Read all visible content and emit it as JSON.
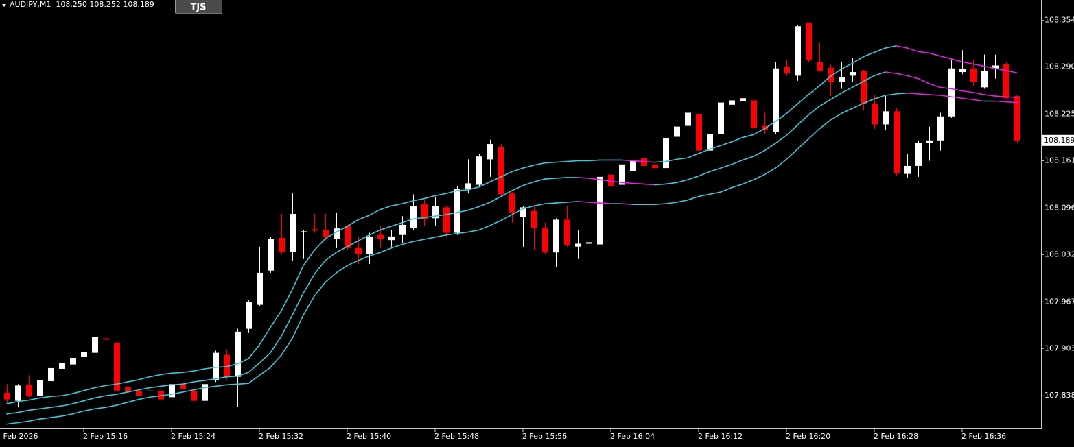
{
  "header": {
    "info": "AUDJPY,M1  108.250 108.252 108.189",
    "button": "TJS"
  },
  "chart_data": {
    "type": "candlestick",
    "date_label": "2 Feb 2026",
    "categories": [
      null,
      null,
      null,
      null,
      null,
      null,
      null,
      "2 Feb 15:16",
      null,
      null,
      null,
      null,
      null,
      null,
      null,
      "2 Feb 15:24",
      null,
      null,
      null,
      null,
      null,
      null,
      null,
      "2 Feb 15:32",
      null,
      null,
      null,
      null,
      null,
      null,
      null,
      "2 Feb 15:40",
      null,
      null,
      null,
      null,
      null,
      null,
      null,
      "2 Feb 15:48",
      null,
      null,
      null,
      null,
      null,
      null,
      null,
      "2 Feb 15:56",
      null,
      null,
      null,
      null,
      null,
      null,
      null,
      "2 Feb 16:04",
      null,
      null,
      null,
      null,
      null,
      null,
      null,
      "2 Feb 16:12",
      null,
      null,
      null,
      null,
      null,
      null,
      null,
      "2 Feb 16:20",
      null,
      null,
      null,
      null,
      null,
      null,
      null,
      "2 Feb 16:28",
      null,
      null,
      null,
      null,
      null,
      null,
      null,
      "2 Feb 16:36",
      null,
      null,
      null,
      null,
      null
    ],
    "open": [
      107.842,
      107.831,
      107.853,
      107.838,
      107.858,
      107.875,
      107.881,
      107.891,
      107.897,
      107.917,
      107.911,
      107.85,
      107.845,
      107.844,
      107.845,
      107.836,
      107.854,
      107.845,
      107.831,
      107.859,
      107.894,
      107.864,
      107.93,
      107.963,
      108.01,
      108.055,
      108.036,
      108.063,
      108.067,
      108.066,
      108.054,
      108.071,
      108.041,
      108.033,
      108.059,
      108.052,
      108.059,
      108.069,
      108.101,
      108.082,
      108.097,
      108.062,
      108.122,
      108.128,
      108.163,
      108.18,
      108.116,
      108.084,
      108.092,
      108.068,
      108.035,
      108.08,
      108.043,
      108.047,
      108.046,
      108.142,
      108.128,
      108.147,
      108.165,
      108.156,
      108.151,
      108.194,
      108.209,
      108.225,
      108.175,
      108.198,
      108.238,
      108.243,
      108.244,
      108.209,
      108.201,
      108.29,
      108.278,
      108.35,
      108.297,
      108.289,
      108.269,
      108.278,
      108.284,
      108.239,
      108.211,
      108.229,
      108.143,
      108.154,
      108.186,
      108.189,
      108.222,
      108.283,
      108.288,
      108.262,
      108.288,
      108.294,
      108.25
    ],
    "high": [
      107.854,
      107.854,
      107.866,
      107.864,
      107.894,
      107.892,
      107.902,
      107.911,
      107.92,
      107.926,
      107.911,
      107.854,
      107.85,
      107.854,
      107.85,
      107.866,
      107.859,
      107.85,
      107.859,
      107.9,
      107.902,
      107.93,
      107.969,
      108.043,
      108.056,
      108.088,
      108.116,
      108.066,
      108.088,
      108.088,
      108.09,
      108.073,
      108.057,
      108.062,
      108.071,
      108.066,
      108.085,
      108.115,
      108.107,
      108.111,
      108.099,
      108.126,
      108.163,
      108.17,
      108.19,
      108.184,
      108.118,
      108.099,
      108.099,
      108.076,
      108.082,
      108.099,
      108.066,
      108.09,
      108.142,
      108.177,
      108.189,
      108.189,
      108.189,
      108.165,
      108.212,
      108.227,
      108.26,
      108.227,
      108.212,
      108.26,
      108.261,
      108.26,
      108.271,
      108.227,
      108.297,
      108.299,
      108.347,
      108.351,
      108.324,
      108.293,
      108.297,
      108.302,
      108.286,
      108.252,
      108.25,
      108.233,
      108.17,
      108.189,
      108.208,
      108.227,
      108.299,
      108.313,
      108.299,
      108.307,
      108.307,
      108.297,
      108.252
    ],
    "low": [
      107.826,
      107.822,
      107.836,
      107.834,
      107.856,
      107.869,
      107.878,
      107.89,
      107.894,
      107.911,
      107.843,
      107.836,
      107.836,
      107.823,
      107.813,
      107.834,
      107.84,
      107.822,
      107.826,
      107.857,
      107.859,
      107.823,
      107.925,
      107.961,
      108.007,
      108.033,
      108.024,
      108.026,
      108.062,
      108.052,
      108.041,
      108.038,
      108.019,
      108.019,
      108.041,
      108.043,
      108.048,
      108.066,
      108.071,
      108.071,
      108.057,
      108.059,
      108.116,
      108.126,
      108.139,
      108.114,
      108.076,
      108.043,
      108.038,
      108.033,
      108.015,
      108.043,
      108.026,
      108.032,
      108.045,
      108.124,
      108.126,
      108.13,
      108.151,
      108.132,
      108.148,
      108.191,
      108.194,
      108.173,
      108.167,
      108.195,
      108.231,
      108.203,
      108.203,
      108.198,
      108.198,
      108.278,
      108.271,
      108.297,
      108.284,
      108.25,
      108.26,
      108.269,
      108.231,
      108.205,
      108.203,
      108.141,
      108.138,
      108.139,
      108.161,
      108.175,
      108.22,
      108.28,
      108.264,
      108.26,
      108.274,
      108.245,
      108.186
    ],
    "close": [
      107.833,
      107.852,
      107.838,
      107.859,
      107.876,
      107.883,
      107.89,
      107.898,
      107.919,
      107.915,
      107.845,
      107.843,
      107.838,
      107.845,
      107.833,
      107.854,
      107.847,
      107.831,
      107.854,
      107.897,
      107.864,
      107.926,
      107.967,
      108.007,
      108.054,
      108.035,
      108.088,
      108.064,
      108.065,
      108.057,
      108.068,
      108.041,
      108.033,
      108.057,
      108.054,
      108.057,
      108.073,
      108.099,
      108.081,
      108.099,
      108.062,
      108.122,
      108.13,
      108.167,
      108.184,
      108.115,
      108.09,
      108.097,
      108.068,
      108.035,
      108.08,
      108.045,
      108.047,
      108.049,
      108.139,
      108.126,
      108.156,
      108.162,
      108.154,
      108.151,
      108.192,
      108.208,
      108.227,
      108.175,
      108.198,
      108.241,
      108.244,
      108.247,
      108.206,
      108.203,
      108.288,
      108.281,
      108.346,
      108.299,
      108.285,
      108.269,
      108.276,
      108.283,
      108.239,
      108.211,
      108.229,
      108.144,
      108.154,
      108.186,
      108.189,
      108.222,
      108.288,
      108.287,
      108.269,
      108.285,
      108.292,
      108.247,
      108.189
    ],
    "up_color": "#ffffff",
    "down_color": "#ff0000",
    "lines": [
      {
        "color": "#3cc8d8",
        "falling_color": "#e020e0",
        "values": [
          107.827,
          107.83,
          107.832,
          107.835,
          107.837,
          107.838,
          107.841,
          107.845,
          107.849,
          107.852,
          107.854,
          107.857,
          107.86,
          107.864,
          107.867,
          107.869,
          107.87,
          107.872,
          107.875,
          107.877,
          107.878,
          107.882,
          107.889,
          107.908,
          107.932,
          107.955,
          107.984,
          108.017,
          108.038,
          108.054,
          108.063,
          108.071,
          108.08,
          108.086,
          108.094,
          108.099,
          108.102,
          108.106,
          108.109,
          108.113,
          108.116,
          108.12,
          108.121,
          108.125,
          108.132,
          108.139,
          108.146,
          108.151,
          108.155,
          108.158,
          108.159,
          108.16,
          108.161,
          108.161,
          108.162,
          108.162,
          108.162,
          108.161,
          108.16,
          108.159,
          108.16,
          108.163,
          108.165,
          108.171,
          108.177,
          108.182,
          108.187,
          108.193,
          108.197,
          108.205,
          108.215,
          108.226,
          108.239,
          108.252,
          108.264,
          108.277,
          108.287,
          108.295,
          108.304,
          108.31,
          108.316,
          108.319,
          108.316,
          108.311,
          108.309,
          108.305,
          108.301,
          108.297,
          108.294,
          108.291,
          108.288,
          108.285,
          108.282
        ]
      },
      {
        "color": "#3cc8d8",
        "falling_color": "#e020e0",
        "values": [
          107.813,
          107.815,
          107.818,
          107.82,
          107.822,
          107.824,
          107.827,
          107.831,
          107.835,
          107.838,
          107.84,
          107.843,
          107.846,
          107.849,
          107.851,
          107.853,
          107.854,
          107.857,
          107.859,
          107.861,
          107.864,
          107.865,
          107.87,
          107.883,
          107.897,
          107.92,
          107.949,
          107.979,
          108.005,
          108.024,
          108.035,
          108.043,
          108.051,
          108.059,
          108.066,
          108.071,
          108.076,
          108.081,
          108.083,
          108.085,
          108.087,
          108.09,
          108.093,
          108.098,
          108.104,
          108.112,
          108.12,
          108.127,
          108.132,
          108.136,
          108.137,
          108.138,
          108.138,
          108.137,
          108.135,
          108.133,
          108.131,
          108.13,
          108.129,
          108.128,
          108.129,
          108.131,
          108.135,
          108.14,
          108.146,
          108.151,
          108.156,
          108.162,
          108.167,
          108.175,
          108.185,
          108.196,
          108.21,
          108.224,
          108.236,
          108.245,
          108.254,
          108.262,
          108.27,
          108.278,
          108.283,
          108.281,
          108.278,
          108.274,
          108.267,
          108.262,
          108.26,
          108.257,
          108.255,
          108.252,
          108.25,
          108.249,
          108.248
        ]
      },
      {
        "color": "#3cc8d8",
        "falling_color": "#e020e0",
        "values": [
          107.799,
          107.801,
          107.803,
          107.806,
          107.808,
          107.81,
          107.813,
          107.817,
          107.82,
          107.822,
          107.825,
          107.829,
          107.833,
          107.836,
          107.838,
          107.84,
          107.843,
          107.846,
          107.849,
          107.851,
          107.853,
          107.854,
          107.855,
          107.866,
          107.877,
          107.894,
          107.917,
          107.949,
          107.975,
          107.994,
          108.007,
          108.017,
          108.024,
          108.03,
          108.035,
          108.041,
          108.046,
          108.05,
          108.053,
          108.056,
          108.059,
          108.061,
          108.063,
          108.066,
          108.072,
          108.079,
          108.087,
          108.095,
          108.099,
          108.102,
          108.103,
          108.104,
          108.105,
          108.104,
          108.103,
          108.102,
          108.102,
          108.101,
          108.101,
          108.101,
          108.102,
          108.104,
          108.107,
          108.112,
          108.115,
          108.118,
          108.124,
          108.129,
          108.135,
          108.142,
          108.151,
          108.163,
          108.177,
          108.191,
          108.205,
          108.217,
          108.226,
          108.233,
          108.24,
          108.246,
          108.251,
          108.253,
          108.254,
          108.253,
          108.252,
          108.251,
          108.249,
          108.247,
          108.245,
          108.243,
          108.243,
          108.242,
          108.241
        ]
      }
    ],
    "current_price": 108.189,
    "ylim": [
      107.793,
      108.382
    ],
    "yticks": [
      108.354,
      {
        "value": 108.29,
        "label": "108.290"
      },
      108.225,
      108.161,
      108.096,
      108.032,
      107.967,
      107.903,
      107.838
    ]
  }
}
